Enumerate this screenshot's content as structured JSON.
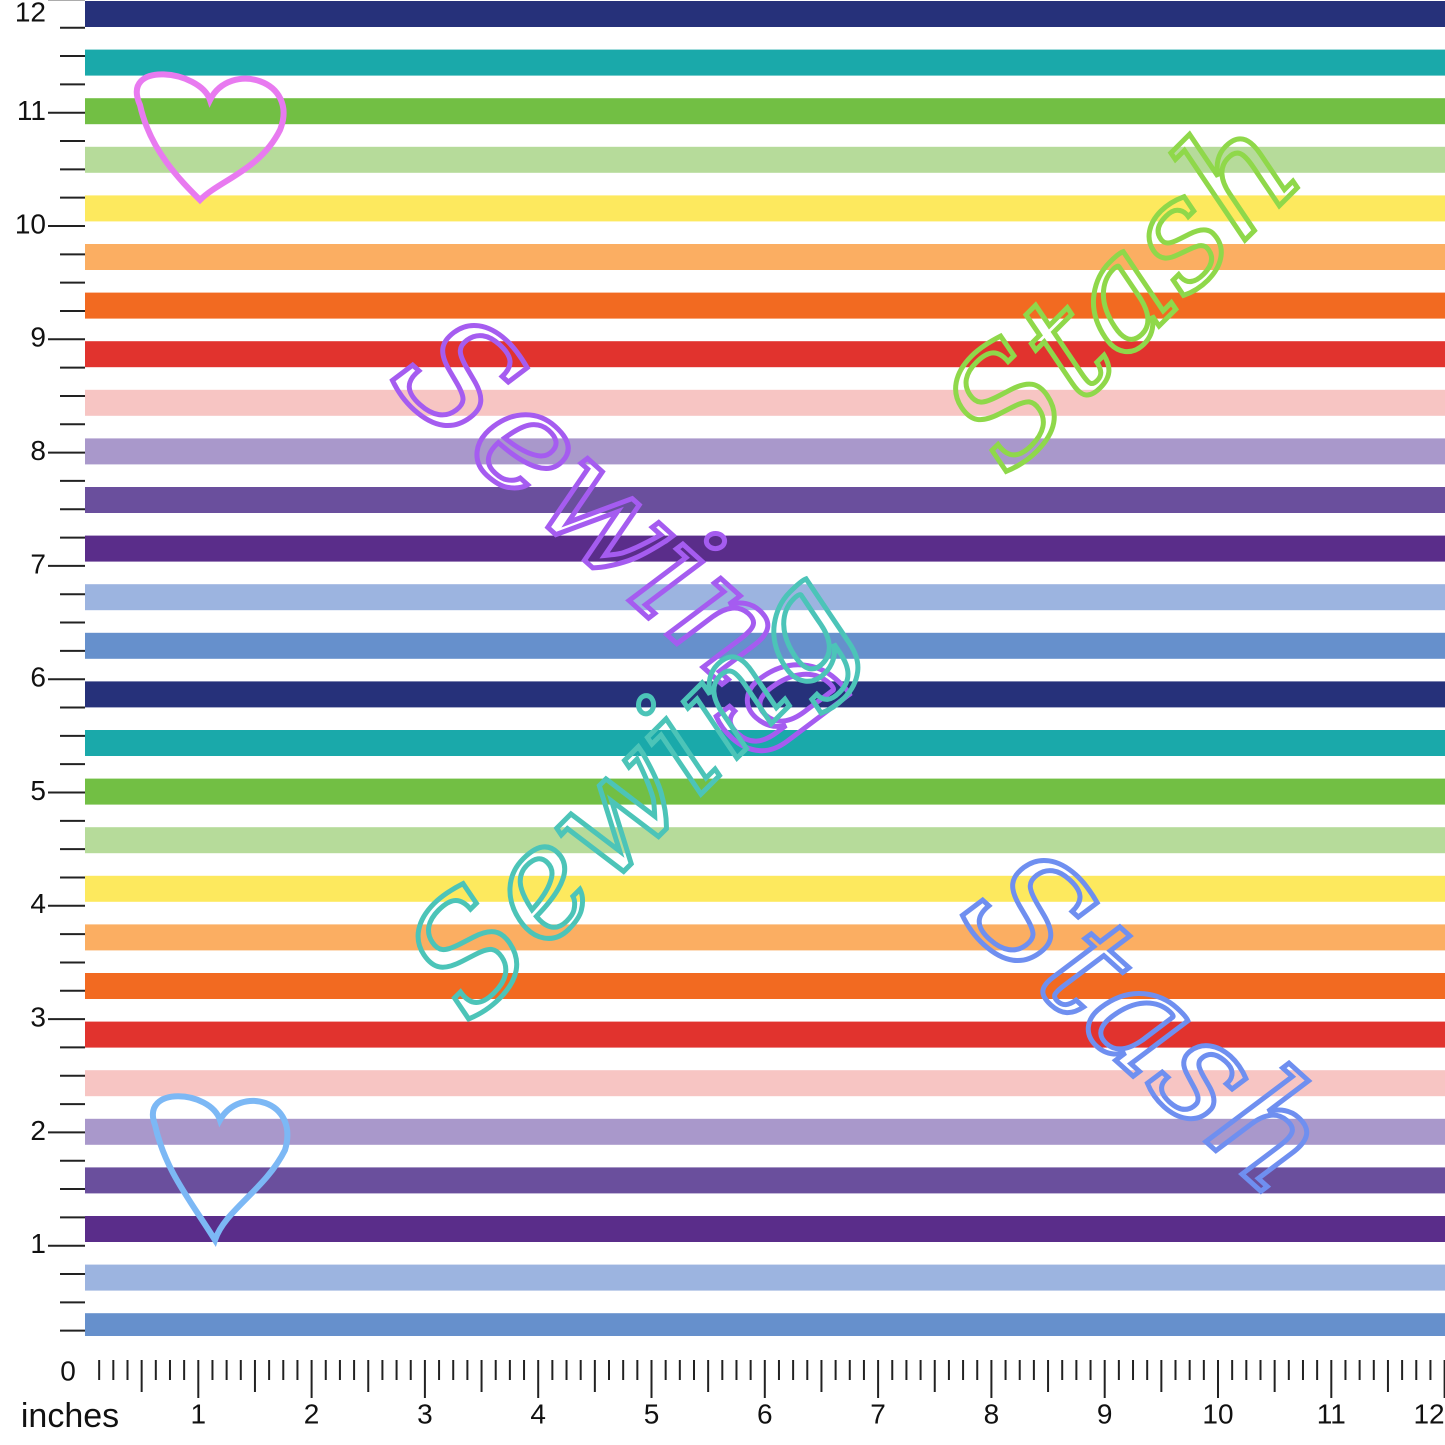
{
  "ruler": {
    "unit": "inches",
    "bottom_labels": [
      0,
      1,
      2,
      3,
      4,
      5,
      6,
      7,
      8,
      9,
      10,
      11,
      12
    ],
    "left_labels": [
      1,
      2,
      3,
      4,
      5,
      6,
      7,
      8,
      9,
      10,
      11,
      12
    ]
  },
  "script_text": [
    {
      "text": "Sewing",
      "color": "#a55cf0"
    },
    {
      "text": "Stash",
      "color": "#8fd84a"
    },
    {
      "text": "Sewing",
      "color": "#4cc4b8"
    },
    {
      "text": "Stash",
      "color": "#6f8ff0"
    }
  ]
}
